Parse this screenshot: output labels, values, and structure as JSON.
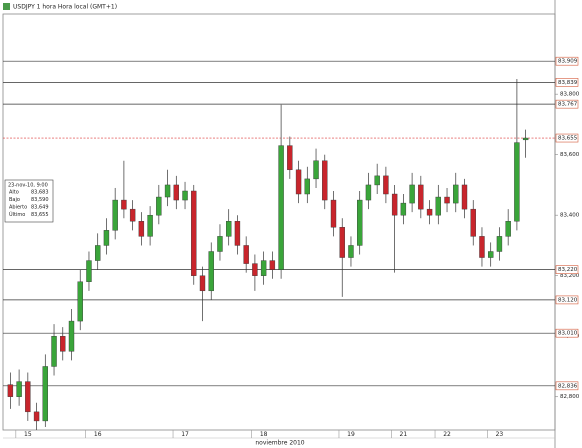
{
  "chart_data": {
    "type": "candlestick",
    "title": "USDJPY 1 hora Hora local (GMT+1)",
    "x_axis_title": "noviembre 2010",
    "categories": [
      null,
      null,
      "15",
      null,
      null,
      null,
      null,
      null,
      null,
      null,
      "16",
      null,
      null,
      null,
      null,
      null,
      null,
      null,
      null,
      null,
      "17",
      null,
      null,
      null,
      null,
      null,
      null,
      null,
      null,
      "18",
      null,
      null,
      null,
      null,
      null,
      null,
      null,
      null,
      null,
      "19",
      null,
      null,
      null,
      null,
      null,
      "21",
      null,
      null,
      null,
      null,
      "22",
      null,
      null,
      null,
      null,
      null,
      "23",
      null,
      null,
      null
    ],
    "open": [
      82.84,
      82.8,
      82.85,
      82.75,
      82.72,
      82.9,
      83.0,
      82.95,
      83.05,
      83.18,
      83.25,
      83.3,
      83.35,
      83.45,
      83.42,
      83.38,
      83.33,
      83.4,
      83.46,
      83.5,
      83.45,
      83.48,
      83.2,
      83.15,
      83.28,
      83.33,
      83.38,
      83.3,
      83.24,
      83.2,
      83.25,
      83.22,
      83.63,
      83.55,
      83.47,
      83.52,
      83.58,
      83.45,
      83.36,
      83.26,
      83.3,
      83.45,
      83.5,
      83.53,
      83.47,
      83.4,
      83.44,
      83.5,
      83.42,
      83.4,
      83.46,
      83.44,
      83.5,
      83.42,
      83.33,
      83.26,
      83.28,
      83.33,
      83.38,
      83.649
    ],
    "high": [
      82.88,
      82.89,
      82.88,
      82.78,
      82.94,
      83.04,
      83.03,
      83.09,
      83.22,
      83.28,
      83.34,
      83.39,
      83.49,
      83.58,
      83.45,
      83.41,
      83.43,
      83.5,
      83.55,
      83.53,
      83.51,
      83.5,
      83.23,
      83.31,
      83.37,
      83.42,
      83.4,
      83.33,
      83.27,
      83.28,
      83.28,
      83.765,
      83.66,
      83.58,
      83.56,
      83.62,
      83.6,
      83.48,
      83.39,
      83.33,
      83.48,
      83.54,
      83.57,
      83.56,
      83.5,
      83.47,
      83.54,
      83.53,
      83.45,
      83.5,
      83.49,
      83.54,
      83.52,
      83.45,
      83.36,
      83.31,
      83.36,
      83.42,
      83.85,
      83.683
    ],
    "low": [
      82.76,
      82.77,
      82.72,
      82.69,
      82.7,
      82.87,
      82.92,
      82.92,
      83.02,
      83.15,
      83.22,
      83.27,
      83.32,
      83.39,
      83.35,
      83.3,
      83.3,
      83.37,
      83.43,
      83.42,
      83.42,
      83.17,
      83.05,
      83.12,
      83.25,
      83.3,
      83.27,
      83.21,
      83.15,
      83.17,
      83.19,
      83.19,
      83.52,
      83.44,
      83.44,
      83.49,
      83.42,
      83.33,
      83.13,
      83.23,
      83.27,
      83.42,
      83.47,
      83.44,
      83.21,
      83.37,
      83.41,
      83.39,
      83.37,
      83.37,
      83.41,
      83.41,
      83.39,
      83.3,
      83.23,
      83.23,
      83.25,
      83.3,
      83.35,
      83.59
    ],
    "close": [
      82.8,
      82.85,
      82.75,
      82.72,
      82.9,
      83.0,
      82.95,
      83.05,
      83.18,
      83.25,
      83.3,
      83.35,
      83.45,
      83.42,
      83.38,
      83.33,
      83.4,
      83.46,
      83.5,
      83.45,
      83.48,
      83.2,
      83.15,
      83.28,
      83.33,
      83.38,
      83.3,
      83.24,
      83.2,
      83.25,
      83.22,
      83.63,
      83.55,
      83.47,
      83.52,
      83.58,
      83.45,
      83.36,
      83.26,
      83.3,
      83.45,
      83.5,
      83.53,
      83.47,
      83.4,
      83.44,
      83.5,
      83.42,
      83.4,
      83.46,
      83.44,
      83.5,
      83.42,
      83.33,
      83.26,
      83.28,
      83.33,
      83.38,
      83.64,
      83.655
    ],
    "up_color": "#3aa53a",
    "down_color": "#c8252c",
    "ylim": [
      82.69,
      84.065
    ],
    "yticks": [
      {
        "value": 82.8,
        "label": "82,800"
      },
      {
        "value": 83.0,
        "label": "83,000"
      },
      {
        "value": 83.2,
        "label": "83,200"
      },
      {
        "value": 83.4,
        "label": "83,400"
      },
      {
        "value": 83.6,
        "label": "83,600"
      },
      {
        "value": 83.8,
        "label": "83,800"
      }
    ],
    "levels": [
      {
        "value": 83.909,
        "label": "83,909"
      },
      {
        "value": 83.839,
        "label": "83,839"
      },
      {
        "value": 83.767,
        "label": "83,767"
      },
      {
        "value": 83.655,
        "label": "83,655",
        "dotted": true
      },
      {
        "value": 83.22,
        "label": "83,220"
      },
      {
        "value": 83.12,
        "label": "83,120"
      },
      {
        "value": 83.01,
        "label": "83,010"
      },
      {
        "value": 82.836,
        "label": "82,836"
      }
    ],
    "info_box": {
      "date": "23-nov-10, 9:00",
      "rows": [
        [
          "Alto",
          "83,683"
        ],
        [
          "Bajo",
          "83,590"
        ],
        [
          "Abierto",
          "83,649"
        ],
        [
          "Último",
          "83,655"
        ]
      ]
    }
  }
}
